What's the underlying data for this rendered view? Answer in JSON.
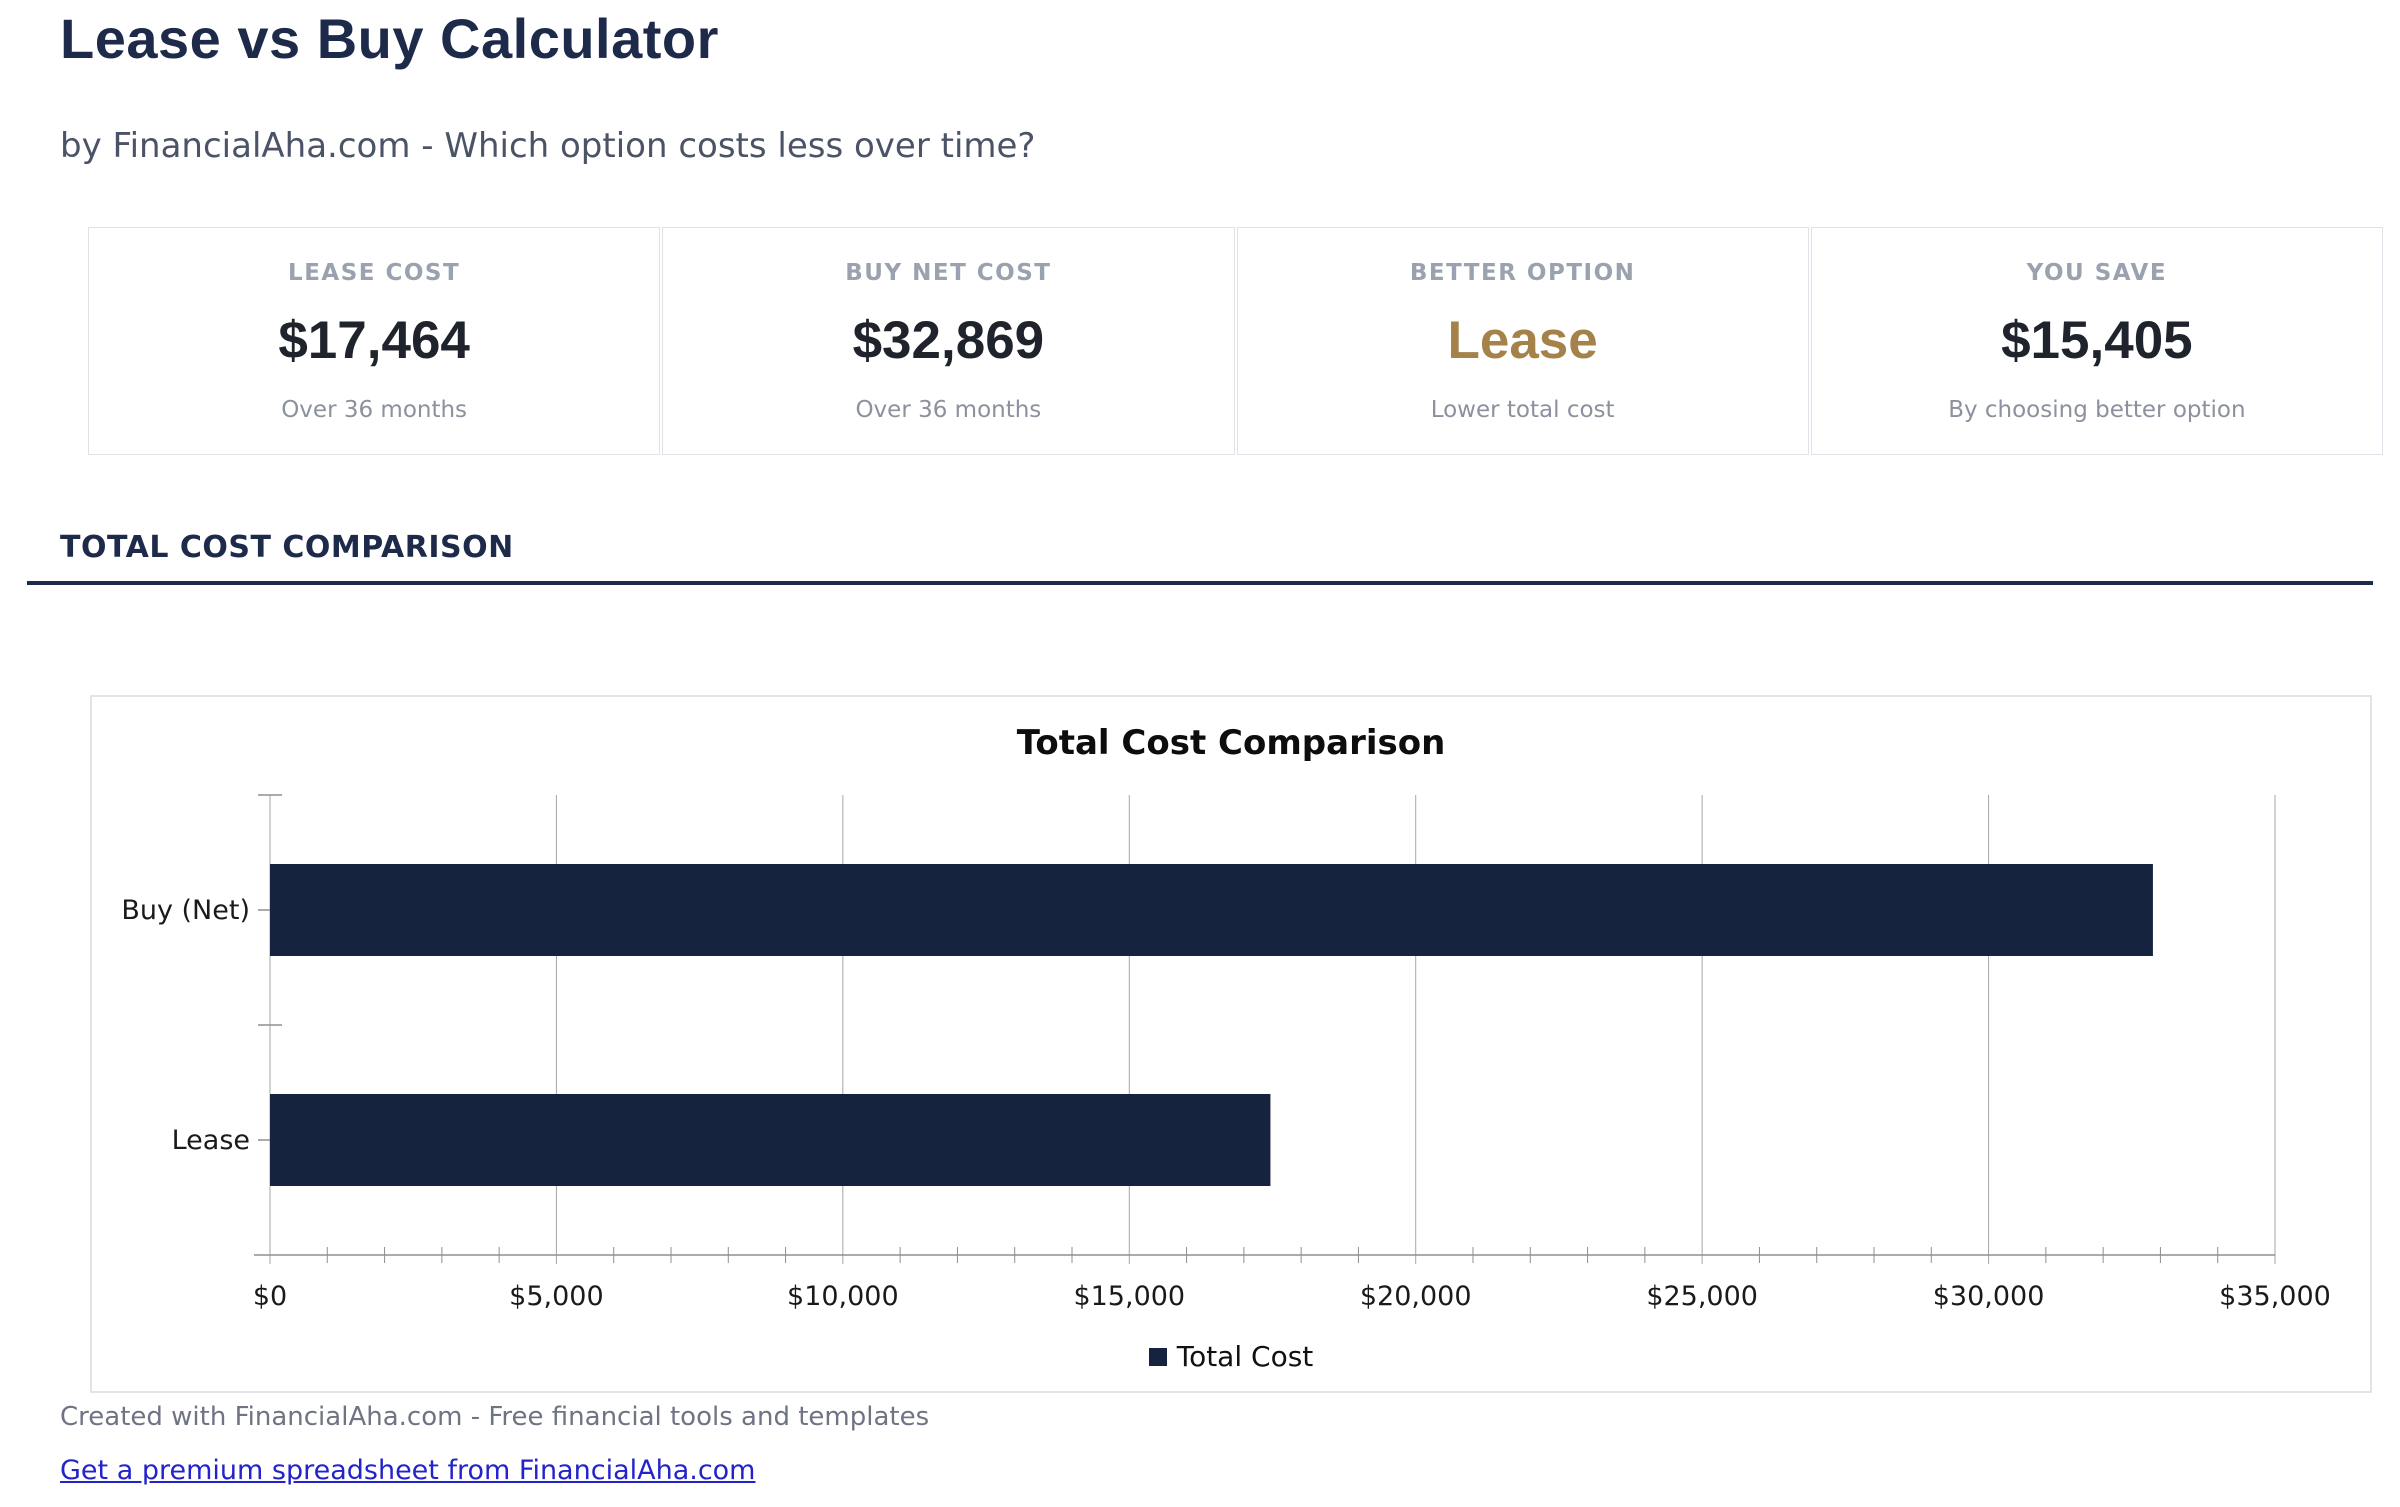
{
  "page": {
    "title": "Lease vs Buy Calculator",
    "subtitle": "by FinancialAha.com - Which option costs less over time?"
  },
  "stats": [
    {
      "label": "LEASE COST",
      "value": "$17,464",
      "sub": "Over 36 months"
    },
    {
      "label": "BUY NET COST",
      "value": "$32,869",
      "sub": "Over 36 months"
    },
    {
      "label": "BETTER OPTION",
      "value": "Lease",
      "sub": "Lower total cost"
    },
    {
      "label": "YOU SAVE",
      "value": "$15,405",
      "sub": "By choosing better option"
    }
  ],
  "section": {
    "title": "TOTAL COST COMPARISON"
  },
  "chart_data": {
    "type": "bar",
    "orientation": "horizontal",
    "title": "Total Cost Comparison",
    "categories": [
      "Buy (Net)",
      "Lease"
    ],
    "series": [
      {
        "name": "Total Cost",
        "values": [
          32869,
          17464
        ],
        "color": "#16233f"
      }
    ],
    "xlim": [
      0,
      35000
    ],
    "x_major_step": 5000,
    "x_minor_step": 1000,
    "tick_prefix": "$",
    "grid": true,
    "legend_position": "bottom"
  },
  "footer": {
    "credit": "Created with FinancialAha.com - Free financial tools and templates",
    "link": "Get a premium spreadsheet from FinancialAha.com"
  },
  "colors": {
    "navy": "#1e2a4a",
    "gold": "#a5824a",
    "bar_navy": "#16233f",
    "value_dark": "#1f232c",
    "grid_gray": "#a6a6a6",
    "axis_gray": "#8f8f8f",
    "tick_text": "#1a1a1a",
    "link_blue": "#2323cc"
  }
}
